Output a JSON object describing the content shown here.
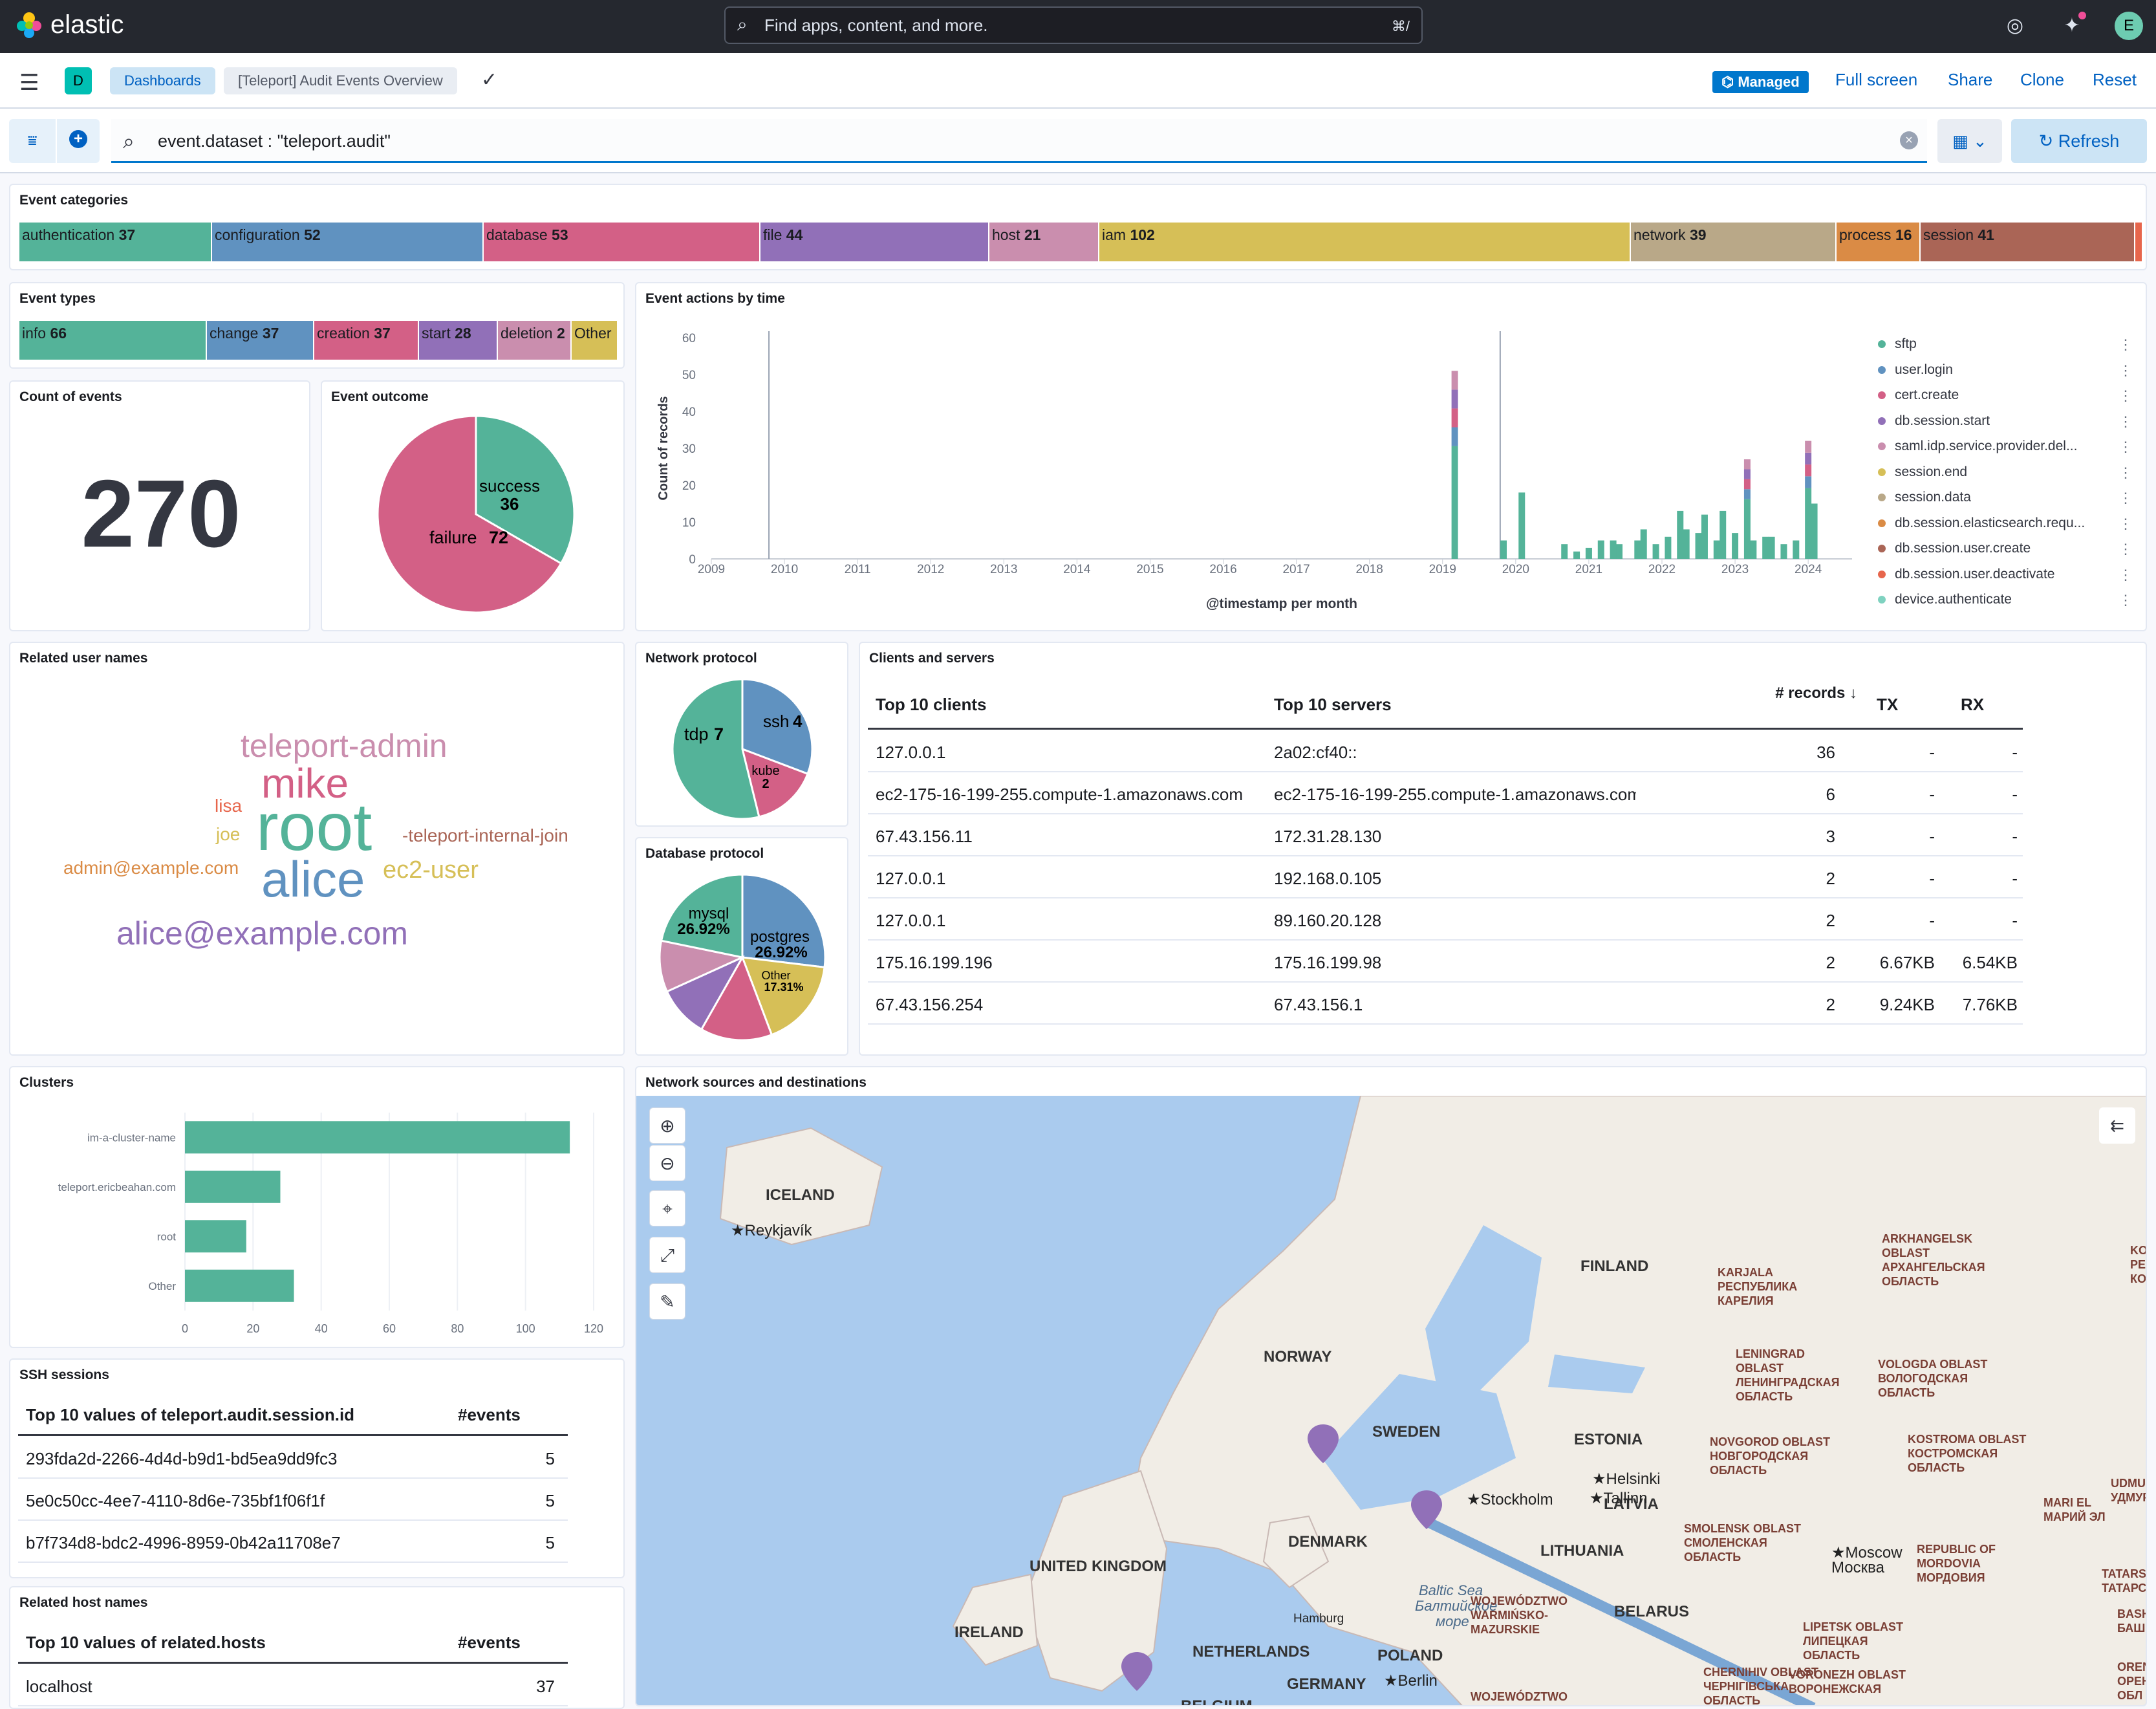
{
  "app": {
    "brand": "elastic",
    "search_placeholder": "Find apps, content, and more.",
    "search_shortcut": "⌘/",
    "avatar": "E"
  },
  "breadcrumbs": {
    "app_badge": "D",
    "dashboards": "Dashboards",
    "current": "[Teleport] Audit Events Overview"
  },
  "header_actions": {
    "managed": "Managed",
    "full_screen": "Full screen",
    "share": "Share",
    "clone": "Clone",
    "reset": "Reset"
  },
  "query": {
    "value": "event.dataset : \"teleport.audit\"",
    "refresh": "Refresh"
  },
  "panels": {
    "event_categories": {
      "title": "Event categories",
      "items": [
        {
          "label": "authentication",
          "value": "37",
          "color": "#54b399"
        },
        {
          "label": "configuration",
          "value": "52",
          "color": "#6092c0"
        },
        {
          "label": "database",
          "value": "53",
          "color": "#d36086"
        },
        {
          "label": "file",
          "value": "44",
          "color": "#9170b8"
        },
        {
          "label": "host",
          "value": "21",
          "color": "#ca8eae"
        },
        {
          "label": "iam",
          "value": "102",
          "color": "#d6bf57"
        },
        {
          "label": "network",
          "value": "39",
          "color": "#b9a888"
        },
        {
          "label": "process",
          "value": "16",
          "color": "#da8b45"
        },
        {
          "label": "session",
          "value": "41",
          "color": "#aa6556"
        },
        {
          "label": "",
          "value": "",
          "color": "#e7664c"
        }
      ]
    },
    "event_types": {
      "title": "Event types",
      "items": [
        {
          "label": "info",
          "value": "66",
          "color": "#54b399"
        },
        {
          "label": "change",
          "value": "37",
          "color": "#6092c0"
        },
        {
          "label": "creation",
          "value": "37",
          "color": "#d36086"
        },
        {
          "label": "start",
          "value": "28",
          "color": "#9170b8"
        },
        {
          "label": "deletion",
          "value": "2",
          "color": "#ca8eae"
        },
        {
          "label": "Other",
          "value": "",
          "color": "#d6bf57"
        }
      ]
    },
    "count": {
      "title": "Count of events",
      "value": "270"
    },
    "outcome": {
      "title": "Event outcome",
      "success_label": "success",
      "success_value": "36",
      "failure_label": "failure",
      "failure_value": "72"
    },
    "actions": {
      "title": "Event actions by time",
      "ylabel": "Count of records",
      "xlabel": "@timestamp per month",
      "legend": [
        {
          "label": "sftp",
          "color": "#54b399"
        },
        {
          "label": "user.login",
          "color": "#6092c0"
        },
        {
          "label": "cert.create",
          "color": "#d36086"
        },
        {
          "label": "db.session.start",
          "color": "#9170b8"
        },
        {
          "label": "saml.idp.service.provider.del...",
          "color": "#ca8eae"
        },
        {
          "label": "session.end",
          "color": "#d6bf57"
        },
        {
          "label": "session.data",
          "color": "#b9a888"
        },
        {
          "label": "db.session.elasticsearch.requ...",
          "color": "#da8b45"
        },
        {
          "label": "db.session.user.create",
          "color": "#aa6556"
        },
        {
          "label": "db.session.user.deactivate",
          "color": "#e7664c"
        },
        {
          "label": "device.authenticate",
          "color": "#7fd2c0"
        }
      ]
    },
    "users": {
      "title": "Related user names",
      "words": [
        {
          "text": "teleport-admin",
          "color": "#ca8eae"
        },
        {
          "text": "mike",
          "color": "#d36086"
        },
        {
          "text": "lisa",
          "color": "#e7664c"
        },
        {
          "text": "joe",
          "color": "#d6bf57"
        },
        {
          "text": "root",
          "color": "#54b399"
        },
        {
          "text": "-teleport-internal-join",
          "color": "#aa6556"
        },
        {
          "text": "admin@example.com",
          "color": "#da8b45"
        },
        {
          "text": "ec2-user",
          "color": "#d6bf57"
        },
        {
          "text": "alice",
          "color": "#6092c0"
        },
        {
          "text": "alice@example.com",
          "color": "#9170b8"
        }
      ]
    },
    "netproto": {
      "title": "Network protocol",
      "tdp": "tdp",
      "tdp_v": "7",
      "ssh": "ssh",
      "ssh_v": "4",
      "kube": "kube",
      "kube_v": "2"
    },
    "dbproto": {
      "title": "Database protocol",
      "mysql": "mysql",
      "mysql_v": "26.92%",
      "postgres": "postgres",
      "postgres_v": "26.92%",
      "other": "Other",
      "other_v": "17.31%"
    },
    "clients": {
      "title": "Clients and servers",
      "headers": {
        "clients": "Top 10 clients",
        "servers": "Top 10 servers",
        "records": "# records",
        "tx": "TX",
        "rx": "RX"
      },
      "rows": [
        {
          "client": "127.0.0.1",
          "server": "2a02:cf40::",
          "records": "36",
          "tx": "-",
          "rx": "-"
        },
        {
          "client": "ec2-175-16-199-255.compute-1.amazonaws.com",
          "server": "ec2-175-16-199-255.compute-1.amazonaws.com",
          "records": "6",
          "tx": "-",
          "rx": "-"
        },
        {
          "client": "67.43.156.11",
          "server": "172.31.28.130",
          "records": "3",
          "tx": "-",
          "rx": "-"
        },
        {
          "client": "127.0.0.1",
          "server": "192.168.0.105",
          "records": "2",
          "tx": "-",
          "rx": "-"
        },
        {
          "client": "127.0.0.1",
          "server": "89.160.20.128",
          "records": "2",
          "tx": "-",
          "rx": "-"
        },
        {
          "client": "175.16.199.196",
          "server": "175.16.199.98",
          "records": "2",
          "tx": "6.67KB",
          "rx": "6.54KB"
        },
        {
          "client": "67.43.156.254",
          "server": "67.43.156.1",
          "records": "2",
          "tx": "9.24KB",
          "rx": "7.76KB"
        }
      ]
    },
    "clusters": {
      "title": "Clusters"
    },
    "ssh": {
      "title": "SSH sessions",
      "col1": "Top 10 values of teleport.audit.session.id",
      "col2": "#events",
      "rows": [
        {
          "id": "293fda2d-2266-4d4d-b9d1-bd5ea9dd9fc3",
          "n": "5"
        },
        {
          "id": "5e0c50cc-4ee7-4110-8d6e-735bf1f06f1f",
          "n": "5"
        },
        {
          "id": "b7f734d8-bdc2-4996-8959-0b42a11708e7",
          "n": "5"
        }
      ]
    },
    "hosts": {
      "title": "Related host names",
      "col1": "Top 10 values of related.hosts",
      "col2": "#events",
      "rows": [
        {
          "host": "localhost",
          "n": "37"
        }
      ]
    },
    "map": {
      "title": "Network sources and destinations",
      "countries": [
        "ICELAND",
        "NORWAY",
        "SWEDEN",
        "FINLAND",
        "ESTONIA",
        "LATVIA",
        "LITHUANIA",
        "DENMARK",
        "UNITED KINGDOM",
        "IRELAND",
        "NETHERLANDS",
        "GERMANY",
        "POLAND",
        "BELARUS",
        "BELGIUM"
      ],
      "cities": [
        "Reykjavík",
        "Stockholm",
        "Helsinki",
        "Tallinn",
        "Moscow",
        "Москва",
        "Berlin",
        "Hamburg"
      ],
      "sea": [
        "Baltic Sea",
        "Балтийское",
        "море"
      ],
      "regions": [
        "KARJALA",
        "РЕСПУБЛИКА",
        "КАРЕЛИЯ",
        "ARKHANGELSK",
        "OBLAST",
        "АРХАНГЕЛЬСКАЯ",
        "ОБЛАСТЬ",
        "LENINGRAD",
        "OBLAST",
        "ЛЕНИНГРАДСКАЯ",
        "ОБЛАСТЬ",
        "VOLOGDA OBLAST",
        "ВОЛОГОДСКАЯ",
        "ОБЛАСТЬ",
        "NOVGOROD OBLAST",
        "НОВГОРОДСКАЯ",
        "ОБЛАСТЬ",
        "KOSTROMA OBLAST",
        "КОСТРОМСКАЯ",
        "ОБЛАСТЬ",
        "SMOLENSK OBLAST",
        "СМОЛЕНСКАЯ",
        "ОБЛАСТЬ",
        "REPUBLIC OF",
        "MORDOVIA",
        "МОРДОВИЯ",
        "MARI EL",
        "МАРИЙ ЭЛ",
        "TATARSTAN",
        "ТАТАРСТАН",
        "UDMURTIA",
        "УДМУРТИЯ",
        "LIPETSK OBLAST",
        "ЛИПЕЦКАЯ",
        "ОБЛАСТЬ",
        "VORONEZH OBLAST",
        "ВОРОНЕЖСКАЯ",
        "CHERNIHIV OBLAST",
        "ЧЕРНІГІВСЬКА",
        "ОБЛАСТЬ",
        "WOJEWÓDZTWO",
        "WARMIŃSKO-",
        "MAZURSKIE",
        "WOJEWÓDZTWO",
        "KOM",
        "РЕСПУБ",
        "КОМ",
        "BASH",
        "БАШ",
        "ORENBUR",
        "ОРЕНБУ",
        "ОБЛ"
      ]
    }
  },
  "chart_data": [
    {
      "type": "bar",
      "title": "Clusters",
      "categories": [
        "im-a-cluster-name",
        "teleport.ericbeahan.com",
        "root",
        "Other"
      ],
      "values": [
        113,
        28,
        18,
        32
      ],
      "xlim": [
        0,
        120
      ],
      "xticks": [
        0,
        20,
        40,
        60,
        80,
        100,
        120
      ]
    },
    {
      "type": "bar",
      "title": "Event actions by time",
      "ylim": [
        0,
        60
      ],
      "yticks": [
        0,
        10,
        20,
        30,
        40,
        50,
        60
      ],
      "xticks": [
        "2009",
        "2010",
        "2011",
        "2012",
        "2013",
        "2014",
        "2015",
        "2016",
        "2017",
        "2018",
        "2019",
        "2020",
        "2021",
        "2022",
        "2023",
        "2024"
      ],
      "x": [
        "2019-03",
        "2019-11",
        "2020-02",
        "2020-09",
        "2020-11",
        "2021-01",
        "2021-03",
        "2021-05",
        "2021-06",
        "2021-09",
        "2021-10",
        "2021-12",
        "2022-02",
        "2022-04",
        "2022-05",
        "2022-07",
        "2022-08",
        "2022-10",
        "2022-11",
        "2023-01",
        "2023-03",
        "2023-04",
        "2023-06",
        "2023-07",
        "2023-09",
        "2023-11",
        "2024-01",
        "2024-02"
      ],
      "values": [
        51,
        5,
        18,
        4,
        2,
        3,
        5,
        5,
        4,
        5,
        8,
        4,
        6,
        13,
        8,
        7,
        12,
        5,
        13,
        7,
        27,
        5,
        6,
        6,
        4,
        5,
        32,
        15
      ]
    },
    {
      "type": "pie",
      "title": "Event outcome",
      "labels": [
        "success",
        "failure"
      ],
      "values": [
        36,
        72
      ]
    },
    {
      "type": "pie",
      "title": "Network protocol",
      "labels": [
        "ssh",
        "kube",
        "tdp"
      ],
      "values": [
        4,
        2,
        7
      ]
    },
    {
      "type": "pie",
      "title": "Database protocol",
      "labels": [
        "postgres",
        "Other",
        "mysql"
      ],
      "values": [
        26.92,
        17.31,
        26.92
      ]
    }
  ]
}
